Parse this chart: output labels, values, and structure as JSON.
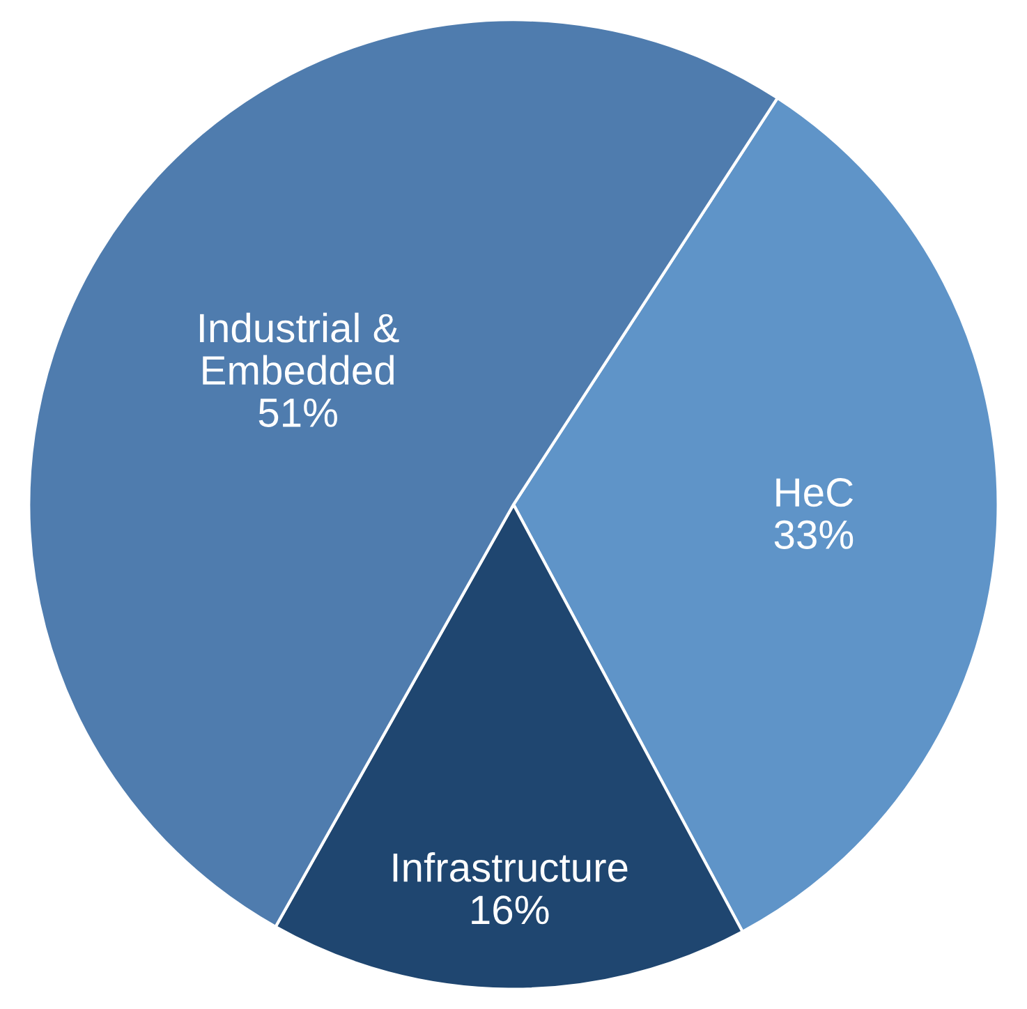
{
  "chart_data": {
    "type": "pie",
    "categories": [
      "HeC",
      "Infrastructure",
      "Industrial &\nEmbedded"
    ],
    "values": [
      33,
      16,
      51
    ],
    "value_labels": [
      "33%",
      "16%",
      "51%"
    ],
    "colors": [
      "#5f94c8",
      "#1f4670",
      "#4f7cae"
    ]
  }
}
